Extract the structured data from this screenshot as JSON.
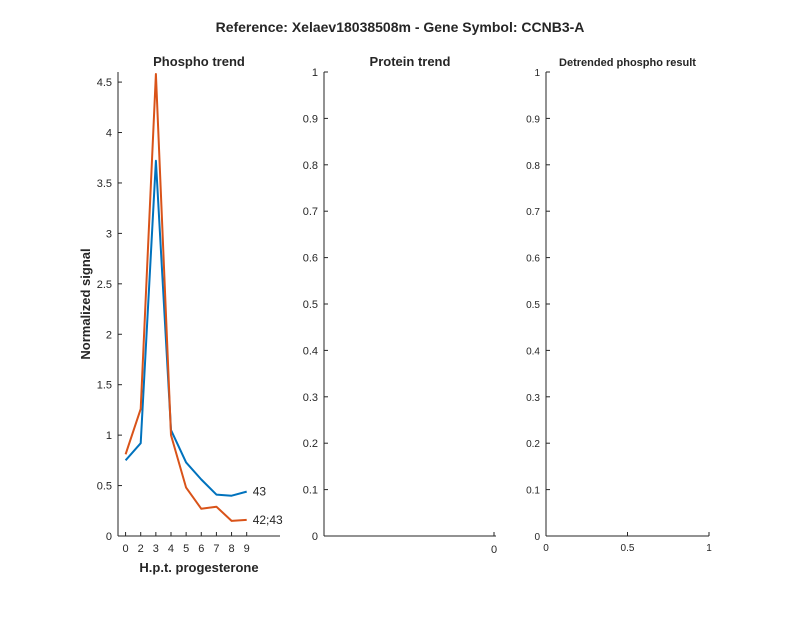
{
  "figure_title": "Reference:  Xelaev18038508m - Gene Symbol:  CCNB3-A",
  "chart_data": [
    {
      "type": "line",
      "title": "Phospho trend",
      "xlabel": "H.p.t. progesterone",
      "ylabel": "Normalized signal",
      "xlim": [
        -0.5,
        10.2
      ],
      "ylim": [
        0,
        4.6
      ],
      "xticks": [
        "0",
        "2",
        "3",
        "4",
        "5",
        "6",
        "7",
        "8",
        "9"
      ],
      "yticks": [
        "0",
        "0.5",
        "1",
        "1.5",
        "2",
        "2.5",
        "3",
        "3.5",
        "4",
        "4.5"
      ],
      "grid": false,
      "series": [
        {
          "name": "43",
          "color": "#0072BD",
          "x": [
            0,
            1,
            2,
            3,
            4,
            5,
            6,
            7,
            8
          ],
          "y": [
            0.75,
            0.92,
            3.72,
            1.05,
            0.73,
            0.56,
            0.41,
            0.4,
            0.44
          ]
        },
        {
          "name": "42;43",
          "color": "#D95319",
          "x": [
            0,
            1,
            2,
            3,
            4,
            5,
            6,
            7,
            8
          ],
          "y": [
            0.81,
            1.26,
            4.58,
            1.0,
            0.48,
            0.27,
            0.29,
            0.15,
            0.16
          ]
        }
      ]
    },
    {
      "type": "line",
      "title": "Protein trend",
      "xlabel": "",
      "ylabel": "",
      "ylim": [
        0,
        1
      ],
      "xticks": [
        "0"
      ],
      "yticks": [
        "0",
        "0.1",
        "0.2",
        "0.3",
        "0.4",
        "0.5",
        "0.6",
        "0.7",
        "0.8",
        "0.9",
        "1"
      ],
      "grid": false,
      "series": []
    },
    {
      "type": "line",
      "title": "Detrended phospho result",
      "xlabel": "",
      "ylabel": "",
      "xlim": [
        0,
        1
      ],
      "ylim": [
        0,
        1
      ],
      "xticks": [
        "0",
        "0.5",
        "1"
      ],
      "yticks": [
        "0",
        "0.1",
        "0.2",
        "0.3",
        "0.4",
        "0.5",
        "0.6",
        "0.7",
        "0.8",
        "0.9",
        "1"
      ],
      "grid": false,
      "series": []
    }
  ]
}
